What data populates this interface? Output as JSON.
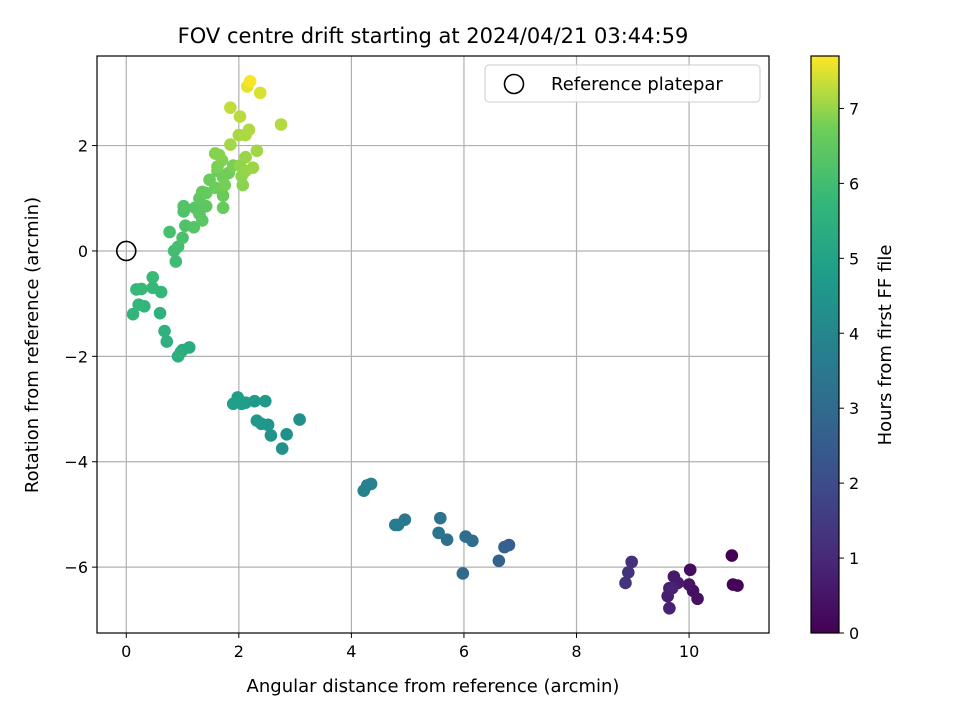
{
  "chart_data": {
    "type": "scatter",
    "title": "FOV centre drift starting at 2024/04/21 03:44:59",
    "xlabel": "Angular distance from reference (arcmin)",
    "ylabel": "Rotation from reference (arcmin)",
    "xlim": [
      -0.52,
      11.42
    ],
    "ylim": [
      -7.25,
      3.7
    ],
    "xticks": [
      0,
      2,
      4,
      6,
      8,
      10
    ],
    "yticks": [
      -6,
      -4,
      -2,
      0,
      2
    ],
    "grid": true,
    "legend": {
      "placement": "top-right",
      "entries": [
        "Reference platepar"
      ]
    },
    "reference_point": {
      "x": 0,
      "y": 0
    },
    "colorbar": {
      "label": "Hours from first FF file",
      "range": [
        0,
        7.7
      ],
      "ticks": [
        0,
        1,
        2,
        3,
        4,
        5,
        6,
        7
      ],
      "colormap": "viridis"
    },
    "series": [
      {
        "points": [
          {
            "x": 10.76,
            "y": -5.78,
            "h": 0.0
          },
          {
            "x": 10.78,
            "y": -6.33,
            "h": 0.05
          },
          {
            "x": 10.86,
            "y": -6.35,
            "h": 0.1
          },
          {
            "x": 10.02,
            "y": -6.05,
            "h": 0.3
          },
          {
            "x": 10.07,
            "y": -6.45,
            "h": 0.35
          },
          {
            "x": 10.15,
            "y": -6.6,
            "h": 0.4
          },
          {
            "x": 10.0,
            "y": -6.33,
            "h": 0.45
          },
          {
            "x": 9.73,
            "y": -6.18,
            "h": 0.6
          },
          {
            "x": 9.8,
            "y": -6.3,
            "h": 0.65
          },
          {
            "x": 9.65,
            "y": -6.4,
            "h": 0.7
          },
          {
            "x": 9.62,
            "y": -6.55,
            "h": 0.75
          },
          {
            "x": 9.65,
            "y": -6.78,
            "h": 0.8
          },
          {
            "x": 9.7,
            "y": -6.4,
            "h": 0.85
          },
          {
            "x": 8.98,
            "y": -5.9,
            "h": 1.2
          },
          {
            "x": 8.92,
            "y": -6.1,
            "h": 1.25
          },
          {
            "x": 8.87,
            "y": -6.3,
            "h": 1.3
          },
          {
            "x": 6.8,
            "y": -5.58,
            "h": 2.6
          },
          {
            "x": 6.72,
            "y": -5.62,
            "h": 2.65
          },
          {
            "x": 6.62,
            "y": -5.88,
            "h": 2.7
          },
          {
            "x": 5.98,
            "y": -6.12,
            "h": 3.0
          },
          {
            "x": 6.15,
            "y": -5.5,
            "h": 3.1
          },
          {
            "x": 6.03,
            "y": -5.42,
            "h": 3.15
          },
          {
            "x": 5.7,
            "y": -5.48,
            "h": 3.2
          },
          {
            "x": 5.58,
            "y": -5.07,
            "h": 3.25
          },
          {
            "x": 5.55,
            "y": -5.35,
            "h": 3.3
          },
          {
            "x": 4.95,
            "y": -5.1,
            "h": 3.5
          },
          {
            "x": 4.83,
            "y": -5.2,
            "h": 3.55
          },
          {
            "x": 4.78,
            "y": -5.2,
            "h": 3.6
          },
          {
            "x": 4.35,
            "y": -4.42,
            "h": 3.8
          },
          {
            "x": 4.28,
            "y": -4.45,
            "h": 3.85
          },
          {
            "x": 4.22,
            "y": -4.55,
            "h": 3.9
          },
          {
            "x": 3.08,
            "y": -3.2,
            "h": 4.3
          },
          {
            "x": 2.85,
            "y": -3.48,
            "h": 4.35
          },
          {
            "x": 2.77,
            "y": -3.75,
            "h": 4.4
          },
          {
            "x": 2.57,
            "y": -3.5,
            "h": 4.45
          },
          {
            "x": 2.52,
            "y": -3.3,
            "h": 4.5
          },
          {
            "x": 2.4,
            "y": -3.28,
            "h": 4.55
          },
          {
            "x": 2.32,
            "y": -3.22,
            "h": 4.6
          },
          {
            "x": 2.47,
            "y": -2.85,
            "h": 4.65
          },
          {
            "x": 2.28,
            "y": -2.85,
            "h": 4.7
          },
          {
            "x": 2.12,
            "y": -2.88,
            "h": 4.75
          },
          {
            "x": 2.05,
            "y": -2.9,
            "h": 4.8
          },
          {
            "x": 1.98,
            "y": -2.78,
            "h": 4.85
          },
          {
            "x": 1.9,
            "y": -2.9,
            "h": 4.9
          },
          {
            "x": 1.12,
            "y": -1.83,
            "h": 5.3
          },
          {
            "x": 1.0,
            "y": -1.88,
            "h": 5.35
          },
          {
            "x": 0.97,
            "y": -1.92,
            "h": 5.4
          },
          {
            "x": 0.92,
            "y": -2.0,
            "h": 5.45
          },
          {
            "x": 0.72,
            "y": -1.72,
            "h": 5.5
          },
          {
            "x": 0.68,
            "y": -1.52,
            "h": 5.55
          },
          {
            "x": 0.6,
            "y": -1.18,
            "h": 5.6
          },
          {
            "x": 0.12,
            "y": -1.2,
            "h": 5.65
          },
          {
            "x": 0.32,
            "y": -1.05,
            "h": 5.7
          },
          {
            "x": 0.22,
            "y": -1.02,
            "h": 5.72
          },
          {
            "x": 0.62,
            "y": -0.78,
            "h": 5.75
          },
          {
            "x": 0.47,
            "y": -0.7,
            "h": 5.78
          },
          {
            "x": 0.18,
            "y": -0.73,
            "h": 5.8
          },
          {
            "x": 0.27,
            "y": -0.72,
            "h": 5.82
          },
          {
            "x": 0.47,
            "y": -0.5,
            "h": 5.85
          },
          {
            "x": 0.88,
            "y": -0.2,
            "h": 5.95
          },
          {
            "x": 0.85,
            "y": 0.0,
            "h": 6.0
          },
          {
            "x": 0.92,
            "y": 0.08,
            "h": 6.05
          },
          {
            "x": 0.77,
            "y": 0.36,
            "h": 6.1
          },
          {
            "x": 1.0,
            "y": 0.25,
            "h": 6.15
          },
          {
            "x": 1.05,
            "y": 0.48,
            "h": 6.2
          },
          {
            "x": 1.02,
            "y": 0.75,
            "h": 6.25
          },
          {
            "x": 1.02,
            "y": 0.85,
            "h": 6.28
          },
          {
            "x": 1.2,
            "y": 0.45,
            "h": 6.3
          },
          {
            "x": 1.22,
            "y": 0.82,
            "h": 6.35
          },
          {
            "x": 1.3,
            "y": 0.7,
            "h": 6.4
          },
          {
            "x": 1.35,
            "y": 0.58,
            "h": 6.42
          },
          {
            "x": 1.42,
            "y": 0.85,
            "h": 6.45
          },
          {
            "x": 1.3,
            "y": 1.0,
            "h": 6.5
          },
          {
            "x": 1.35,
            "y": 1.12,
            "h": 6.52
          },
          {
            "x": 1.42,
            "y": 1.1,
            "h": 6.55
          },
          {
            "x": 1.72,
            "y": 0.82,
            "h": 6.6
          },
          {
            "x": 1.72,
            "y": 1.05,
            "h": 6.62
          },
          {
            "x": 1.48,
            "y": 1.35,
            "h": 6.65
          },
          {
            "x": 1.58,
            "y": 1.2,
            "h": 6.68
          },
          {
            "x": 1.62,
            "y": 1.52,
            "h": 6.7
          },
          {
            "x": 1.72,
            "y": 1.4,
            "h": 6.72
          },
          {
            "x": 1.82,
            "y": 1.48,
            "h": 6.75
          },
          {
            "x": 1.75,
            "y": 1.25,
            "h": 6.78
          },
          {
            "x": 1.9,
            "y": 1.62,
            "h": 6.8
          },
          {
            "x": 1.62,
            "y": 1.6,
            "h": 6.82
          },
          {
            "x": 1.7,
            "y": 1.72,
            "h": 6.85
          },
          {
            "x": 1.58,
            "y": 1.85,
            "h": 6.88
          },
          {
            "x": 1.65,
            "y": 1.82,
            "h": 6.9
          },
          {
            "x": 2.07,
            "y": 1.25,
            "h": 6.92
          },
          {
            "x": 2.05,
            "y": 1.42,
            "h": 6.95
          },
          {
            "x": 2.02,
            "y": 1.62,
            "h": 6.98
          },
          {
            "x": 2.12,
            "y": 1.52,
            "h": 7.0
          },
          {
            "x": 2.12,
            "y": 1.78,
            "h": 7.02
          },
          {
            "x": 2.25,
            "y": 1.58,
            "h": 7.05
          },
          {
            "x": 2.32,
            "y": 1.9,
            "h": 7.08
          },
          {
            "x": 1.85,
            "y": 2.02,
            "h": 7.1
          },
          {
            "x": 2.0,
            "y": 2.2,
            "h": 7.12
          },
          {
            "x": 2.12,
            "y": 2.2,
            "h": 7.15
          },
          {
            "x": 2.18,
            "y": 2.3,
            "h": 7.18
          },
          {
            "x": 2.75,
            "y": 2.4,
            "h": 7.2
          },
          {
            "x": 2.02,
            "y": 2.55,
            "h": 7.25
          },
          {
            "x": 1.85,
            "y": 2.72,
            "h": 7.3
          },
          {
            "x": 2.38,
            "y": 3.0,
            "h": 7.45
          },
          {
            "x": 2.15,
            "y": 3.12,
            "h": 7.55
          },
          {
            "x": 2.2,
            "y": 3.22,
            "h": 7.65
          }
        ]
      }
    ]
  }
}
